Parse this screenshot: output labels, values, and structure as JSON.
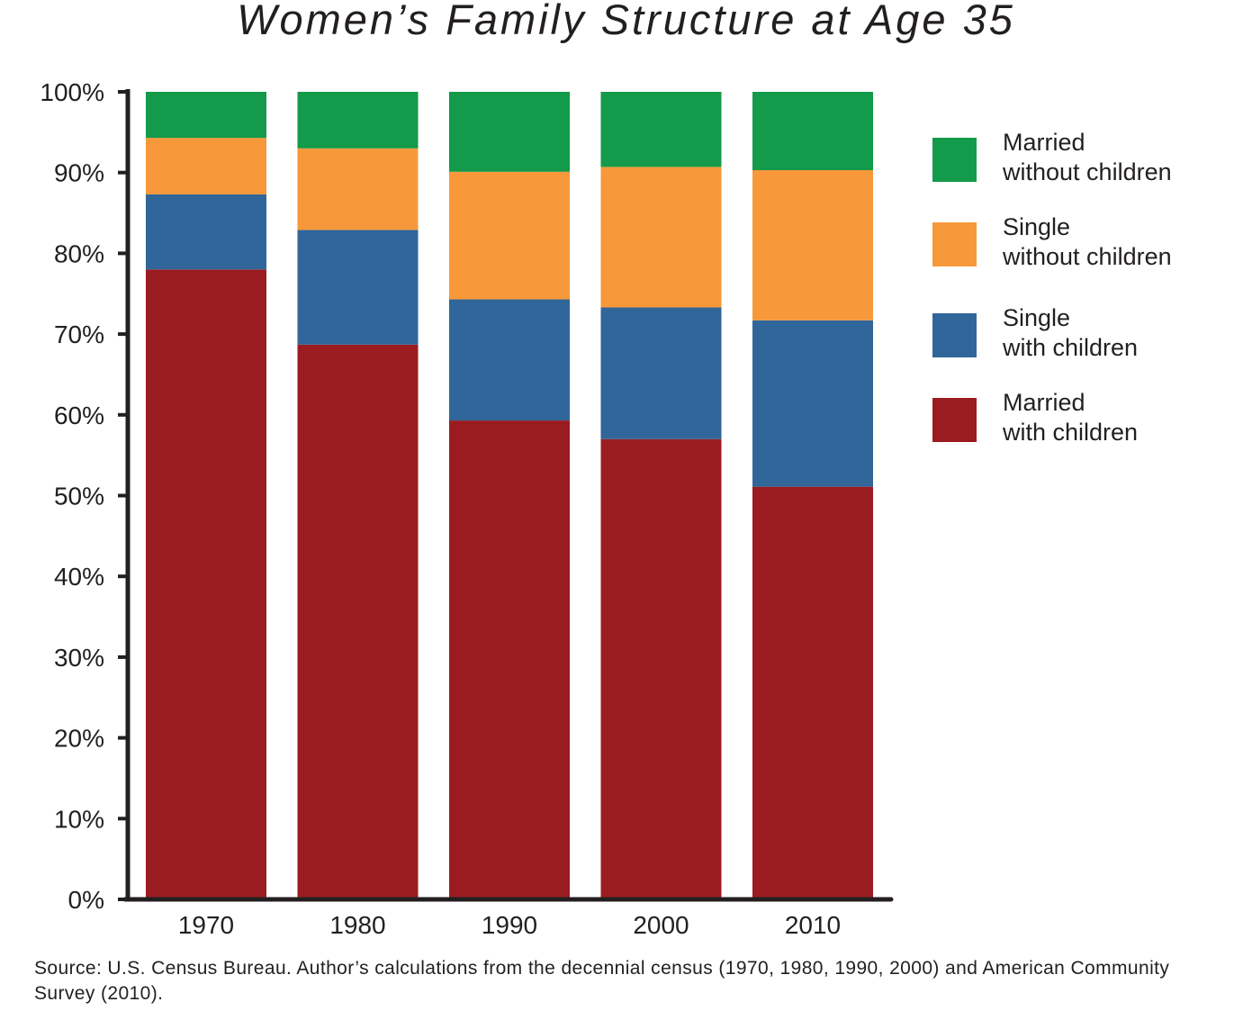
{
  "chart_data": {
    "type": "bar",
    "stacked": true,
    "title": "Women’s Family Structure at Age 35",
    "categories": [
      "1970",
      "1980",
      "1990",
      "2000",
      "2010"
    ],
    "series": [
      {
        "name": "Married with children",
        "name_lines": [
          "Married",
          "with children"
        ],
        "color": "#9b1c20",
        "values": [
          78.0,
          68.7,
          59.3,
          57.0,
          51.1
        ]
      },
      {
        "name": "Single with children",
        "name_lines": [
          "Single",
          "with children"
        ],
        "color": "#31669a",
        "values": [
          9.3,
          14.2,
          15.0,
          16.3,
          20.6
        ]
      },
      {
        "name": "Single without children",
        "name_lines": [
          "Single",
          "without children"
        ],
        "color": "#f7993a",
        "values": [
          7.0,
          10.1,
          15.8,
          17.4,
          18.6
        ]
      },
      {
        "name": "Married without children",
        "name_lines": [
          "Married",
          "without children"
        ],
        "color": "#139a4a",
        "values": [
          5.7,
          7.0,
          9.9,
          9.3,
          9.7
        ]
      }
    ],
    "legend_order": [
      "Married without children",
      "Single without children",
      "Single with children",
      "Married with children"
    ],
    "yticks": [
      "0%",
      "10%",
      "20%",
      "30%",
      "40%",
      "50%",
      "60%",
      "70%",
      "80%",
      "90%",
      "100%"
    ],
    "ylim": [
      0,
      100
    ],
    "xlabel": "",
    "ylabel": "",
    "grid": false,
    "legend_position": "right",
    "source": "Source: U.S. Census Bureau. Author’s calculations from the decennial census (1970, 1980, 1990, 2000) and American Community Survey (2010)."
  }
}
